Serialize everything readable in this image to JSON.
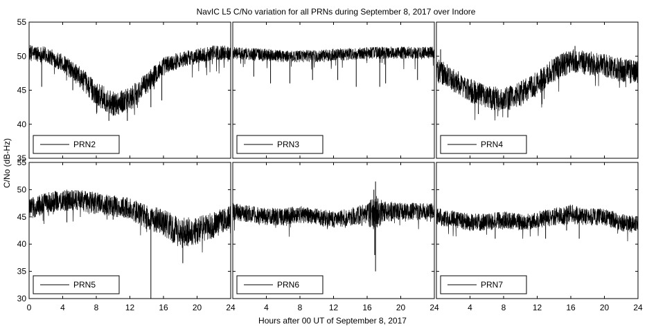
{
  "chart_data": {
    "title": "NavIC L5 C/No variation for all PRNs during September 8, 2017 over Indore",
    "xlabel": "Hours after 00 UT of September 8, 2017",
    "ylabel": "C/No (dB-Hz)",
    "type": "line",
    "xlim": [
      0,
      24
    ],
    "xticks": [
      0,
      4,
      8,
      12,
      16,
      20,
      24
    ],
    "xticks_right_panels": [
      4,
      8,
      12,
      16,
      20,
      24
    ],
    "xtick_labels_left": [
      "0",
      "4",
      "8",
      "12",
      "16",
      "20",
      "24"
    ],
    "xtick_labels_right": [
      "4",
      "8",
      "12",
      "16",
      "20",
      "24"
    ],
    "legend_placement": "bottom-left",
    "grid": false,
    "color": "#000000",
    "panels": [
      {
        "name": "PRN2",
        "ylim": [
          35,
          55
        ],
        "yticks": [
          "35",
          "40",
          "45",
          "50",
          "55"
        ],
        "x": [
          0,
          2,
          4,
          6,
          8,
          10,
          12,
          14,
          16,
          18,
          20,
          22,
          24
        ],
        "mean": [
          50.5,
          50.2,
          49,
          47,
          44.5,
          43,
          43.5,
          46,
          48.5,
          49.5,
          50,
          50.5,
          50.5
        ],
        "amp": [
          1.2,
          1.2,
          1.3,
          1.5,
          1.8,
          1.8,
          1.8,
          1.6,
          1.4,
          1.2,
          1.1,
          1.1,
          1.1
        ],
        "spikes": [
          [
            1.5,
            45.5
          ],
          [
            5.2,
            45
          ],
          [
            9.5,
            40.5
          ],
          [
            11.7,
            40.5
          ],
          [
            14.5,
            42.5
          ],
          [
            15.8,
            43.5
          ],
          [
            7.5,
            43.5
          ]
        ]
      },
      {
        "name": "PRN3",
        "ylim": [
          35,
          55
        ],
        "yticks": [
          "35",
          "40",
          "45",
          "50",
          "55"
        ],
        "x": [
          0,
          2,
          4,
          6,
          8,
          10,
          12,
          14,
          16,
          18,
          20,
          22,
          24
        ],
        "mean": [
          50.5,
          50.3,
          50.2,
          50,
          50,
          50,
          50.2,
          50.3,
          50.5,
          50.5,
          50.5,
          50.5,
          50.5
        ],
        "amp": [
          0.9,
          0.9,
          0.9,
          0.9,
          0.9,
          0.9,
          0.9,
          0.9,
          0.9,
          0.9,
          0.9,
          0.9,
          0.9
        ],
        "spikes": [
          [
            2.5,
            47
          ],
          [
            4.5,
            46
          ],
          [
            6.8,
            46
          ],
          [
            9.5,
            46.5
          ],
          [
            12.5,
            46.5
          ],
          [
            14.7,
            45.5
          ],
          [
            17.5,
            45.5
          ],
          [
            18.2,
            46
          ],
          [
            22,
            46.5
          ]
        ]
      },
      {
        "name": "PRN4",
        "ylim": [
          35,
          55
        ],
        "yticks": [
          "35",
          "40",
          "45",
          "50",
          "55"
        ],
        "x": [
          0,
          2,
          4,
          6,
          8,
          10,
          12,
          14,
          16,
          18,
          20,
          22,
          24
        ],
        "mean": [
          48,
          46.5,
          45,
          44,
          43.5,
          44.5,
          46,
          48,
          49.3,
          49,
          48.5,
          48,
          47.5
        ],
        "amp": [
          1.8,
          1.8,
          1.8,
          1.8,
          1.8,
          1.8,
          1.8,
          1.8,
          1.8,
          1.8,
          1.8,
          1.8,
          1.8
        ],
        "spikes": [
          [
            5,
            41.5
          ],
          [
            8.5,
            41
          ],
          [
            16.5,
            51.5
          ],
          [
            0.5,
            51
          ]
        ]
      },
      {
        "name": "PRN5",
        "ylim": [
          30,
          55
        ],
        "yticks": [
          "30",
          "35",
          "40",
          "45",
          "50",
          "55"
        ],
        "x": [
          0,
          2,
          4,
          6,
          8,
          10,
          12,
          14,
          16,
          18,
          20,
          22,
          24
        ],
        "mean": [
          46.5,
          47.5,
          48,
          48,
          47.5,
          47,
          46.5,
          45,
          44,
          42,
          42.5,
          43.5,
          45
        ],
        "amp": [
          2.0,
          2.0,
          2.0,
          2.0,
          2.0,
          2.0,
          2.0,
          2.2,
          2.5,
          2.8,
          2.6,
          2.4,
          2.2
        ],
        "spikes": [
          [
            14.5,
            30
          ],
          [
            18.3,
            36.5
          ],
          [
            4.5,
            44
          ],
          [
            10,
            44.5
          ]
        ]
      },
      {
        "name": "PRN6",
        "ylim": [
          30,
          55
        ],
        "yticks": [
          "30",
          "35",
          "40",
          "45",
          "50",
          "55"
        ],
        "x": [
          0,
          2,
          4,
          6,
          8,
          10,
          12,
          14,
          16,
          17,
          18,
          20,
          22,
          24
        ],
        "mean": [
          46,
          45.5,
          45,
          45,
          45.5,
          45,
          44.5,
          45,
          45.5,
          45.5,
          46,
          46,
          46,
          46
        ],
        "amp": [
          1.6,
          1.6,
          1.6,
          1.6,
          1.6,
          1.6,
          1.6,
          1.6,
          2.0,
          3.5,
          2.0,
          1.6,
          1.6,
          1.6
        ],
        "spikes": [
          [
            17.0,
            35
          ],
          [
            16.9,
            38
          ],
          [
            17.0,
            51.5
          ],
          [
            16.8,
            50
          ]
        ]
      },
      {
        "name": "PRN7",
        "ylim": [
          30,
          55
        ],
        "yticks": [
          "30",
          "35",
          "40",
          "45",
          "50",
          "55"
        ],
        "x": [
          0,
          2,
          4,
          6,
          8,
          10,
          12,
          14,
          16,
          18,
          20,
          22,
          24
        ],
        "mean": [
          45,
          44.5,
          44,
          44,
          44.5,
          44,
          44.5,
          45,
          45.5,
          45,
          45,
          44,
          43.5
        ],
        "amp": [
          1.6,
          1.6,
          1.6,
          1.6,
          1.6,
          1.6,
          1.6,
          1.6,
          1.8,
          1.6,
          1.6,
          1.6,
          1.6
        ],
        "spikes": [
          [
            7,
            41
          ],
          [
            13,
            41
          ],
          [
            15.5,
            42.5
          ],
          [
            17,
            41
          ]
        ]
      }
    ]
  }
}
